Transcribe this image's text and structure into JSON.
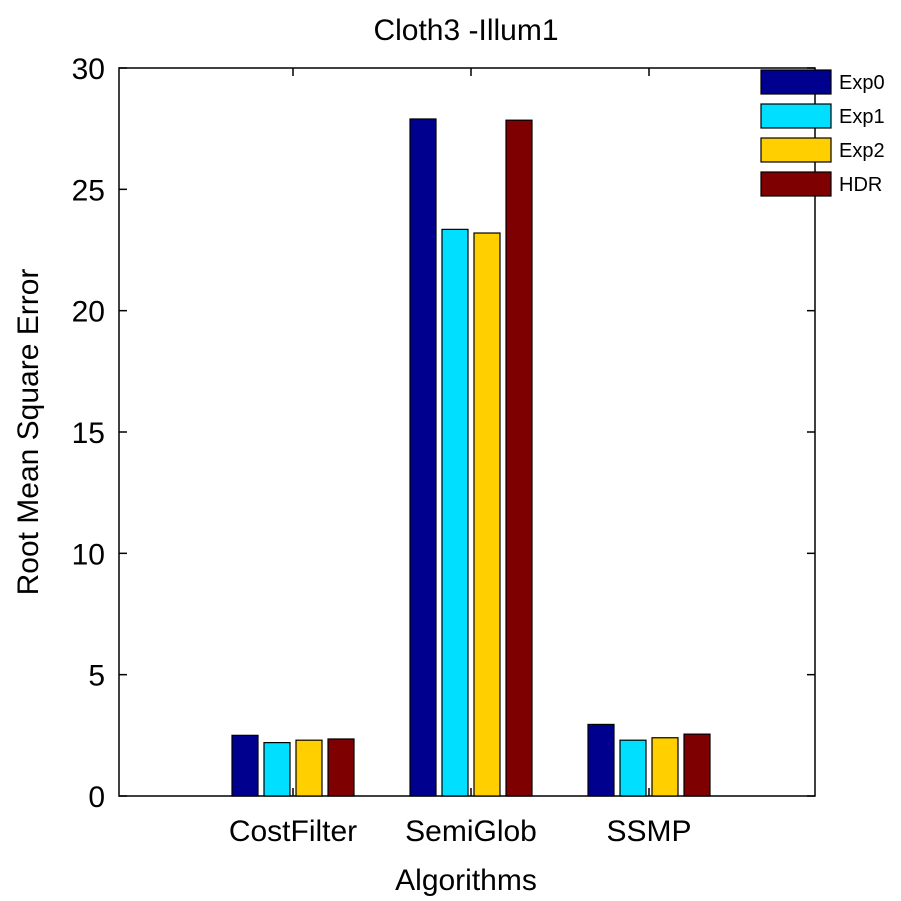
{
  "chart_data": {
    "type": "bar",
    "title": "Cloth3 -Illum1",
    "xlabel": "Algorithms",
    "ylabel": "Root Mean Square Error",
    "ylim": [
      0,
      30
    ],
    "yticks": [
      0,
      5,
      10,
      15,
      20,
      25,
      30
    ],
    "categories": [
      "CostFilter",
      "SemiGlob",
      "SSMP"
    ],
    "series": [
      {
        "name": "Exp0",
        "color": "#00008f",
        "values": [
          2.5,
          27.9,
          2.95
        ]
      },
      {
        "name": "Exp1",
        "color": "#00dfff",
        "values": [
          2.2,
          23.35,
          2.3
        ]
      },
      {
        "name": "Exp2",
        "color": "#ffcf00",
        "values": [
          2.3,
          23.2,
          2.4
        ]
      },
      {
        "name": "HDR",
        "color": "#7f0000",
        "values": [
          2.35,
          27.85,
          2.55
        ]
      }
    ],
    "grid": false,
    "legend_position": "top-right"
  }
}
